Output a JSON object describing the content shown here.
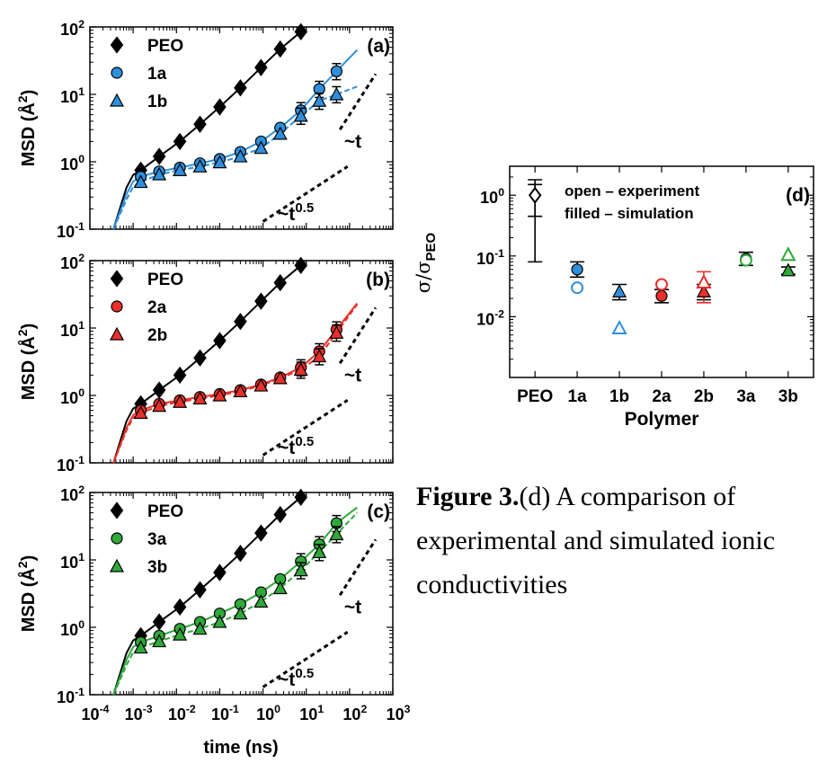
{
  "colors": {
    "peo": "#000000",
    "group1": "#2f8fdc",
    "group2": "#e8312a",
    "group3": "#2fa83a"
  },
  "caption": {
    "label": "Figure 3.",
    "text": "(d) A comparison of experimental and simulated ionic conductivities"
  },
  "chart_data": [
    {
      "id": "a",
      "type": "line",
      "panel_label": "(a)",
      "xlabel": "",
      "ylabel": "MSD (Å²)",
      "x_scale": "log",
      "y_scale": "log",
      "xlim": [
        0.0001,
        1000
      ],
      "ylim": [
        0.1,
        100
      ],
      "y_ticks": [
        "10⁻¹",
        "10⁰",
        "10¹",
        "10²"
      ],
      "legend": [
        "PEO",
        "1a",
        "1b"
      ],
      "legend_position": "top-left",
      "guide_labels": [
        "~t",
        "~t^0.5"
      ],
      "series": [
        {
          "name": "PEO",
          "marker": "diamond",
          "color": "#000000",
          "x": [
            0.0015,
            0.004,
            0.012,
            0.035,
            0.1,
            0.3,
            0.9,
            2.5,
            7.5
          ],
          "y": [
            0.75,
            1.2,
            2.0,
            3.6,
            6.5,
            12.5,
            25,
            47,
            85
          ]
        },
        {
          "name": "1a",
          "marker": "circle",
          "color": "#2f8fdc",
          "x": [
            0.0015,
            0.004,
            0.012,
            0.035,
            0.1,
            0.3,
            0.9,
            2.5,
            7.5,
            20,
            50
          ],
          "y": [
            0.6,
            0.72,
            0.82,
            0.95,
            1.1,
            1.4,
            2.0,
            3.2,
            5.8,
            12,
            22
          ]
        },
        {
          "name": "1b",
          "marker": "triangle",
          "color": "#2f8fdc",
          "x": [
            0.0015,
            0.004,
            0.012,
            0.035,
            0.1,
            0.3,
            0.9,
            2.5,
            7.5,
            20,
            50
          ],
          "y": [
            0.5,
            0.65,
            0.75,
            0.85,
            0.98,
            1.2,
            1.6,
            2.6,
            4.8,
            8.0,
            10
          ]
        }
      ]
    },
    {
      "id": "b",
      "type": "line",
      "panel_label": "(b)",
      "xlabel": "",
      "ylabel": "MSD (Å²)",
      "x_scale": "log",
      "y_scale": "log",
      "xlim": [
        0.0001,
        1000
      ],
      "ylim": [
        0.1,
        100
      ],
      "y_ticks": [
        "10⁻¹",
        "10⁰",
        "10¹",
        "10²"
      ],
      "legend": [
        "PEO",
        "2a",
        "2b"
      ],
      "legend_position": "top-left",
      "guide_labels": [
        "~t",
        "~t^0.5"
      ],
      "series": [
        {
          "name": "PEO",
          "marker": "diamond",
          "color": "#000000",
          "x": [
            0.0015,
            0.004,
            0.012,
            0.035,
            0.1,
            0.3,
            0.9,
            2.5,
            7.5
          ],
          "y": [
            0.75,
            1.2,
            2.0,
            3.6,
            6.5,
            12.5,
            25,
            47,
            85
          ]
        },
        {
          "name": "2a",
          "marker": "circle",
          "color": "#e8312a",
          "x": [
            0.0015,
            0.004,
            0.012,
            0.035,
            0.1,
            0.3,
            0.9,
            2.5,
            7.5,
            20,
            50
          ],
          "y": [
            0.6,
            0.75,
            0.85,
            0.95,
            1.05,
            1.2,
            1.45,
            1.85,
            2.6,
            4.5,
            9.5
          ]
        },
        {
          "name": "2b",
          "marker": "triangle",
          "color": "#e8312a",
          "x": [
            0.0015,
            0.004,
            0.012,
            0.035,
            0.1,
            0.3,
            0.9,
            2.5,
            7.5,
            20,
            50
          ],
          "y": [
            0.55,
            0.7,
            0.8,
            0.9,
            1.0,
            1.15,
            1.4,
            1.8,
            2.4,
            3.8,
            8.5
          ]
        }
      ]
    },
    {
      "id": "c",
      "type": "line",
      "panel_label": "(c)",
      "xlabel": "time (ns)",
      "ylabel": "MSD (Å²)",
      "x_scale": "log",
      "y_scale": "log",
      "xlim": [
        0.0001,
        1000
      ],
      "ylim": [
        0.1,
        100
      ],
      "x_ticks": [
        "10⁻⁴",
        "10⁻³",
        "10⁻²",
        "10⁻¹",
        "10⁰",
        "10¹",
        "10²",
        "10³"
      ],
      "y_ticks": [
        "10⁻¹",
        "10⁰",
        "10¹",
        "10²"
      ],
      "legend": [
        "PEO",
        "3a",
        "3b"
      ],
      "legend_position": "top-left",
      "guide_labels": [
        "~t",
        "~t^0.5"
      ],
      "series": [
        {
          "name": "PEO",
          "marker": "diamond",
          "color": "#000000",
          "x": [
            0.0015,
            0.004,
            0.012,
            0.035,
            0.1,
            0.3,
            0.9,
            2.5,
            7.5
          ],
          "y": [
            0.75,
            1.2,
            2.0,
            3.6,
            6.5,
            12.5,
            25,
            47,
            85
          ]
        },
        {
          "name": "3a",
          "marker": "circle",
          "color": "#2fa83a",
          "x": [
            0.0015,
            0.004,
            0.012,
            0.035,
            0.1,
            0.3,
            0.9,
            2.5,
            7.5,
            20,
            50
          ],
          "y": [
            0.6,
            0.75,
            0.95,
            1.2,
            1.6,
            2.2,
            3.3,
            5.2,
            9.5,
            17,
            35
          ]
        },
        {
          "name": "3b",
          "marker": "triangle",
          "color": "#2fa83a",
          "x": [
            0.0015,
            0.004,
            0.012,
            0.035,
            0.1,
            0.3,
            0.9,
            2.5,
            7.5,
            20,
            50
          ],
          "y": [
            0.5,
            0.62,
            0.78,
            0.95,
            1.2,
            1.6,
            2.4,
            3.8,
            7.0,
            13,
            24
          ]
        }
      ]
    },
    {
      "id": "d",
      "type": "scatter",
      "panel_label": "(d)",
      "xlabel": "Polymer",
      "ylabel": "σ/σPEO",
      "y_scale": "log",
      "ylim": [
        0.001,
        3
      ],
      "y_ticks": [
        "10⁻²",
        "10⁻¹",
        "10⁰"
      ],
      "categories": [
        "PEO",
        "1a",
        "1b",
        "2a",
        "2b",
        "3a",
        "3b"
      ],
      "legend": [
        "open – experiment",
        "filled – simulation"
      ],
      "legend_position": "top",
      "series": [
        {
          "name": "experiment",
          "style": "open",
          "points": [
            {
              "cat": "PEO",
              "marker": "diamond",
              "color": "#000000",
              "y": 1.0,
              "lo": 0.08,
              "hi": 1.8
            },
            {
              "cat": "1a",
              "marker": "circle",
              "color": "#2f8fdc",
              "y": 0.03
            },
            {
              "cat": "1b",
              "marker": "triangle",
              "color": "#2f8fdc",
              "y": 0.0065
            },
            {
              "cat": "2a",
              "marker": "circle",
              "color": "#e8312a",
              "y": 0.034
            },
            {
              "cat": "2b",
              "marker": "triangle",
              "color": "#e8312a",
              "y": 0.037,
              "lo": 0.017,
              "hi": 0.055
            },
            {
              "cat": "3a",
              "marker": "circle",
              "color": "#2fa83a",
              "y": 0.085
            },
            {
              "cat": "3b",
              "marker": "triangle",
              "color": "#2fa83a",
              "y": 0.105
            }
          ]
        },
        {
          "name": "simulation",
          "style": "filled",
          "points": [
            {
              "cat": "PEO",
              "marker": "none",
              "color": "#000000",
              "y": 1.0,
              "lo": 0.45,
              "hi": 1.5
            },
            {
              "cat": "1a",
              "marker": "circle",
              "color": "#2f8fdc",
              "y": 0.06,
              "lo": 0.045,
              "hi": 0.08
            },
            {
              "cat": "1b",
              "marker": "triangle",
              "color": "#2f8fdc",
              "y": 0.026,
              "lo": 0.019,
              "hi": 0.034
            },
            {
              "cat": "2a",
              "marker": "circle",
              "color": "#e8312a",
              "y": 0.022,
              "lo": 0.017,
              "hi": 0.028
            },
            {
              "cat": "2b",
              "marker": "triangle",
              "color": "#e8312a",
              "y": 0.026,
              "lo": 0.019,
              "hi": 0.034
            },
            {
              "cat": "3a",
              "marker": "circle",
              "color": "#2fa83a",
              "y": 0.09,
              "lo": 0.07,
              "hi": 0.115
            },
            {
              "cat": "3b",
              "marker": "triangle",
              "color": "#2fa83a",
              "y": 0.058,
              "lo": 0.05,
              "hi": 0.066
            }
          ]
        }
      ]
    }
  ]
}
